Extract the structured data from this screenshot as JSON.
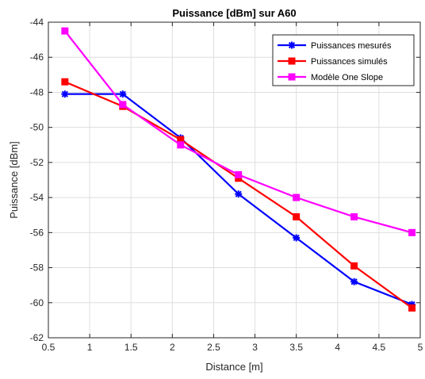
{
  "chart_data": {
    "type": "line",
    "title": "Puissance [dBm] sur A60",
    "xlabel": "Distance [m]",
    "ylabel": "Puissance [dBm]",
    "xlim": [
      0.5,
      5
    ],
    "ylim": [
      -62,
      -44
    ],
    "xticks": [
      0.5,
      1,
      1.5,
      2,
      2.5,
      3,
      3.5,
      4,
      4.5,
      5
    ],
    "yticks": [
      -62,
      -60,
      -58,
      -56,
      -54,
      -52,
      -50,
      -48,
      -46,
      -44
    ],
    "x": [
      0.7,
      1.4,
      2.1,
      2.8,
      3.5,
      4.2,
      4.9
    ],
    "grid": true,
    "legend_position": "top-right",
    "series": [
      {
        "name": "Puissances mesurés",
        "color": "#0000ff",
        "marker": "asterisk",
        "values": [
          -48.1,
          -48.1,
          -50.6,
          -53.8,
          -56.3,
          -58.8,
          -60.1
        ]
      },
      {
        "name": "Puissances simulés",
        "color": "#ff0000",
        "marker": "square",
        "values": [
          -47.4,
          -48.8,
          -50.7,
          -52.9,
          -55.1,
          -57.9,
          -60.3
        ]
      },
      {
        "name": "Modèle One Slope",
        "color": "#ff00ff",
        "marker": "square",
        "values": [
          -44.5,
          -48.7,
          -51.0,
          -52.7,
          -54.0,
          -55.1,
          -56.0
        ]
      }
    ]
  }
}
